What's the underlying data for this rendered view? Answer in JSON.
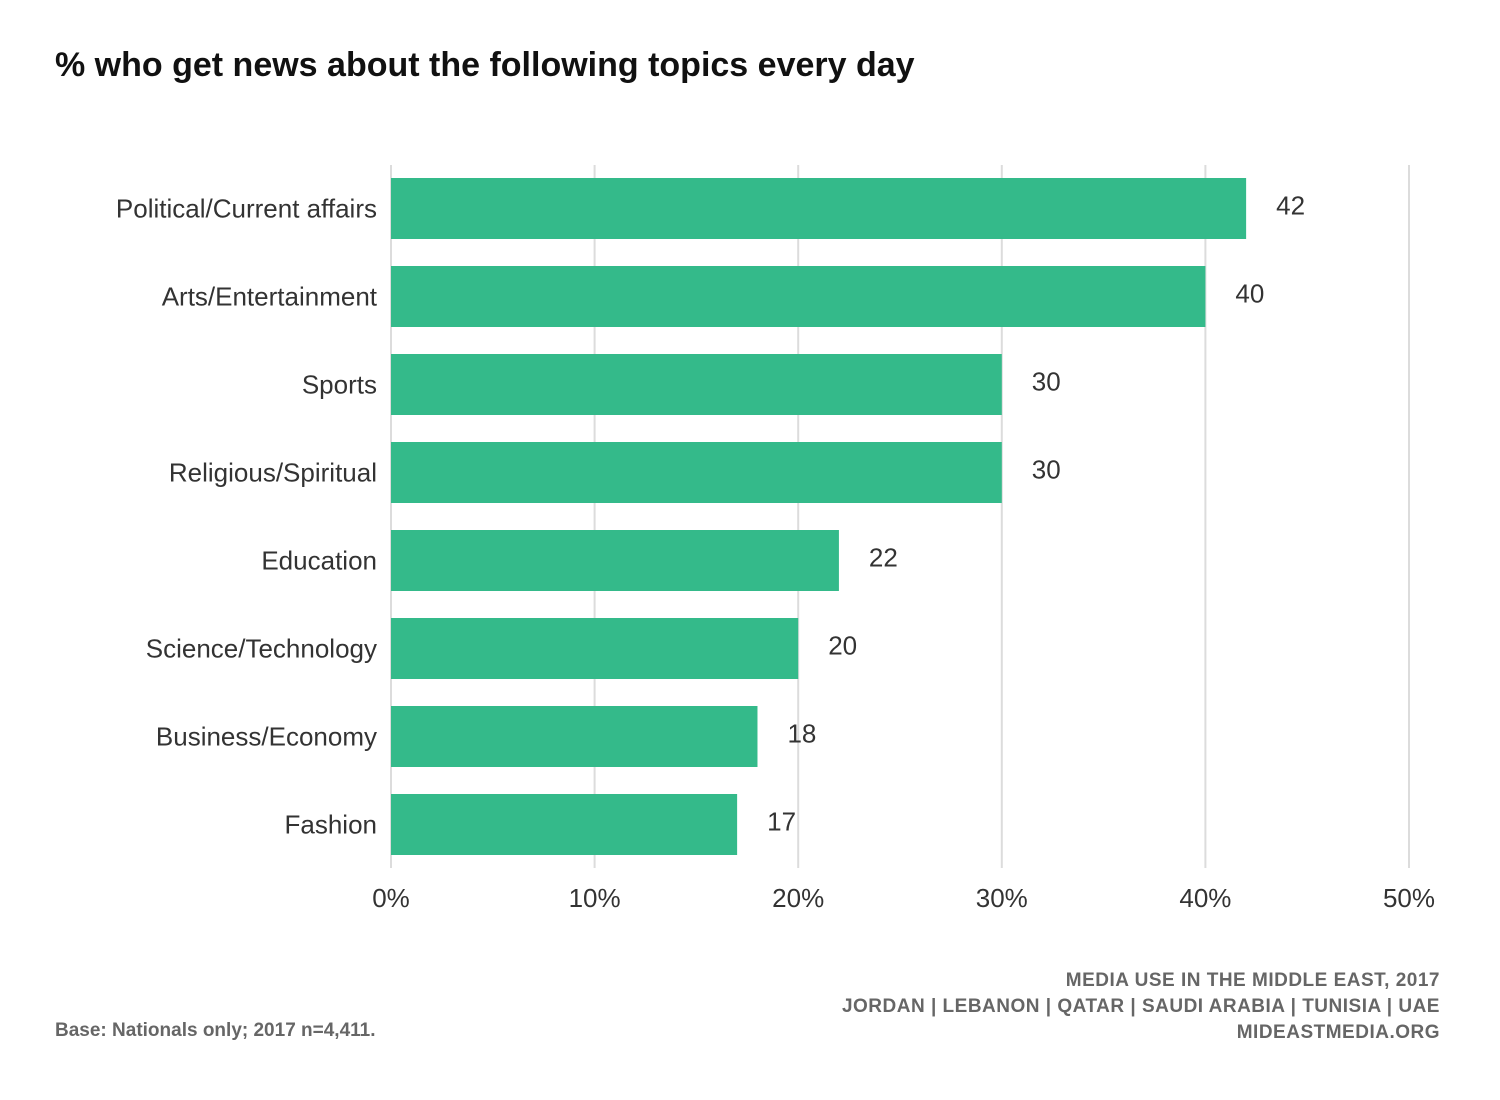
{
  "chart_data": {
    "type": "bar",
    "orientation": "horizontal",
    "title": "% who get news about the following topics every day",
    "categories": [
      "Political/Current affairs",
      "Arts/Entertainment",
      "Sports",
      "Religious/Spiritual",
      "Education",
      "Science/Technology",
      "Business/Economy",
      "Fashion"
    ],
    "values": [
      42,
      40,
      30,
      30,
      22,
      20,
      18,
      17
    ],
    "xlim": [
      0,
      50
    ],
    "xticks": [
      "0%",
      "10%",
      "20%",
      "30%",
      "40%",
      "50%"
    ],
    "xtick_values": [
      0,
      10,
      20,
      30,
      40,
      50
    ],
    "grid": true,
    "xlabel": "",
    "ylabel": "",
    "bar_color": "#34BA8A"
  },
  "footer": {
    "line1": "MEDIA USE IN THE MIDDLE EAST, 2017",
    "line2": "JORDAN | LEBANON | QATAR | SAUDI ARABIA | TUNISIA | UAE",
    "line3": "MIDEASTMEDIA.ORG",
    "base": "Base: Nationals only; 2017 n=4,411."
  }
}
